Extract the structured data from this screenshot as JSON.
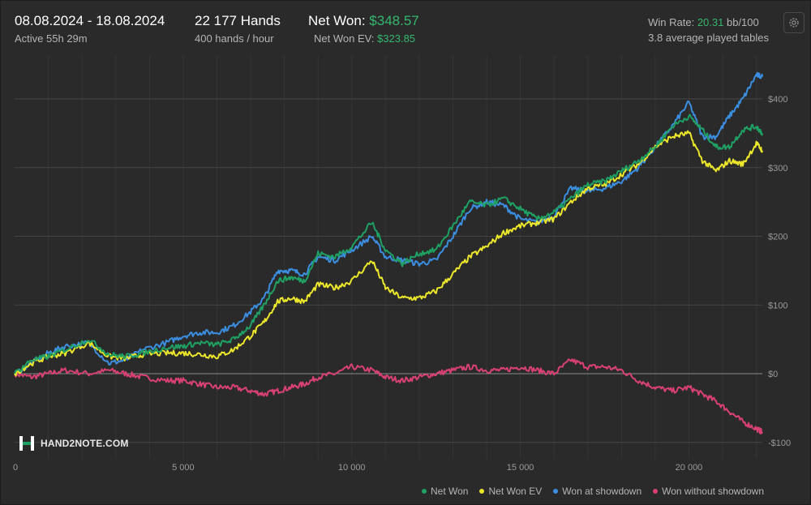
{
  "header": {
    "period": "08.08.2024 - 18.08.2024",
    "active": "Active 55h 29m",
    "hands": "22 177 Hands",
    "hands_rate": "400 hands / hour",
    "net_won_label": "Net Won:",
    "net_won_value": "$348.57",
    "net_won_ev_label": "Net Won  EV:",
    "net_won_ev_value": "$323.85",
    "win_rate_label": "Win Rate:",
    "win_rate_value": "20.31",
    "win_rate_unit": "bb/100",
    "tables": "3.8 average played tables"
  },
  "logo": {
    "text": "HAND2NOTE.COM"
  },
  "colors": {
    "net_won": "#1fa163",
    "net_won_ev": "#ece72a",
    "showdown": "#3b8ee0",
    "non_showdown": "#d94172",
    "accent_green": "#35b86e"
  },
  "chart_data": {
    "type": "line",
    "xlim": [
      0,
      22177
    ],
    "ylim": [
      -100,
      440
    ],
    "x_ticks": [
      0,
      5000,
      10000,
      15000,
      20000
    ],
    "x_tick_labels": [
      "0",
      "5 000",
      "10 000",
      "15 000",
      "20 000"
    ],
    "y_ticks": [
      -100,
      0,
      100,
      200,
      300,
      400
    ],
    "y_tick_labels": [
      "-$100",
      "$0",
      "$100",
      "$200",
      "$300",
      "$400"
    ],
    "grid": true,
    "legend_position": "bottom-right",
    "series": [
      {
        "name": "Net Won",
        "color": "#1fa163",
        "points": [
          [
            0,
            0
          ],
          [
            500,
            20
          ],
          [
            1000,
            25
          ],
          [
            1500,
            35
          ],
          [
            2200,
            50
          ],
          [
            2800,
            28
          ],
          [
            3300,
            25
          ],
          [
            3800,
            30
          ],
          [
            4500,
            38
          ],
          [
            5000,
            40
          ],
          [
            5500,
            45
          ],
          [
            6000,
            42
          ],
          [
            6500,
            50
          ],
          [
            7000,
            70
          ],
          [
            7400,
            100
          ],
          [
            7800,
            135
          ],
          [
            8200,
            140
          ],
          [
            8600,
            135
          ],
          [
            9000,
            175
          ],
          [
            9500,
            170
          ],
          [
            10000,
            185
          ],
          [
            10600,
            220
          ],
          [
            11000,
            180
          ],
          [
            11500,
            160
          ],
          [
            12000,
            175
          ],
          [
            12500,
            180
          ],
          [
            13000,
            215
          ],
          [
            13500,
            250
          ],
          [
            14000,
            245
          ],
          [
            14500,
            255
          ],
          [
            15000,
            240
          ],
          [
            15500,
            225
          ],
          [
            16000,
            235
          ],
          [
            16500,
            255
          ],
          [
            17000,
            275
          ],
          [
            17500,
            280
          ],
          [
            18000,
            295
          ],
          [
            18500,
            310
          ],
          [
            19000,
            330
          ],
          [
            19500,
            360
          ],
          [
            20000,
            375
          ],
          [
            20400,
            355
          ],
          [
            20800,
            330
          ],
          [
            21200,
            330
          ],
          [
            21600,
            355
          ],
          [
            22000,
            360
          ],
          [
            22177,
            350
          ]
        ]
      },
      {
        "name": "Net Won  EV",
        "color": "#ece72a",
        "points": [
          [
            0,
            0
          ],
          [
            500,
            15
          ],
          [
            1000,
            25
          ],
          [
            1500,
            30
          ],
          [
            2200,
            45
          ],
          [
            2800,
            25
          ],
          [
            3300,
            22
          ],
          [
            3800,
            28
          ],
          [
            4500,
            30
          ],
          [
            5000,
            30
          ],
          [
            5500,
            28
          ],
          [
            6000,
            25
          ],
          [
            6500,
            35
          ],
          [
            7000,
            55
          ],
          [
            7400,
            75
          ],
          [
            7800,
            105
          ],
          [
            8200,
            110
          ],
          [
            8600,
            105
          ],
          [
            9000,
            130
          ],
          [
            9500,
            125
          ],
          [
            10000,
            135
          ],
          [
            10600,
            165
          ],
          [
            11000,
            125
          ],
          [
            11500,
            110
          ],
          [
            12000,
            110
          ],
          [
            12500,
            120
          ],
          [
            13000,
            145
          ],
          [
            13500,
            170
          ],
          [
            14000,
            185
          ],
          [
            14500,
            205
          ],
          [
            15000,
            215
          ],
          [
            15500,
            220
          ],
          [
            16000,
            225
          ],
          [
            16500,
            250
          ],
          [
            17000,
            270
          ],
          [
            17500,
            275
          ],
          [
            18000,
            290
          ],
          [
            18500,
            305
          ],
          [
            19000,
            330
          ],
          [
            19500,
            345
          ],
          [
            20000,
            350
          ],
          [
            20400,
            310
          ],
          [
            20800,
            295
          ],
          [
            21200,
            310
          ],
          [
            21600,
            305
          ],
          [
            22000,
            335
          ],
          [
            22177,
            325
          ]
        ]
      },
      {
        "name": "Won at showdown",
        "color": "#3b8ee0",
        "points": [
          [
            0,
            0
          ],
          [
            500,
            15
          ],
          [
            1000,
            30
          ],
          [
            1500,
            40
          ],
          [
            2200,
            45
          ],
          [
            2800,
            15
          ],
          [
            3300,
            20
          ],
          [
            3800,
            35
          ],
          [
            4500,
            45
          ],
          [
            5000,
            55
          ],
          [
            5500,
            60
          ],
          [
            6000,
            60
          ],
          [
            6500,
            70
          ],
          [
            7000,
            90
          ],
          [
            7400,
            110
          ],
          [
            7800,
            150
          ],
          [
            8200,
            150
          ],
          [
            8600,
            145
          ],
          [
            9000,
            170
          ],
          [
            9500,
            165
          ],
          [
            10000,
            180
          ],
          [
            10600,
            200
          ],
          [
            11000,
            170
          ],
          [
            11500,
            165
          ],
          [
            12000,
            160
          ],
          [
            12500,
            165
          ],
          [
            13000,
            200
          ],
          [
            13500,
            240
          ],
          [
            14000,
            250
          ],
          [
            14500,
            245
          ],
          [
            15000,
            225
          ],
          [
            15500,
            220
          ],
          [
            16000,
            230
          ],
          [
            16500,
            270
          ],
          [
            17000,
            265
          ],
          [
            17500,
            270
          ],
          [
            18000,
            280
          ],
          [
            18500,
            300
          ],
          [
            19000,
            330
          ],
          [
            19500,
            360
          ],
          [
            20000,
            395
          ],
          [
            20400,
            345
          ],
          [
            20800,
            345
          ],
          [
            21200,
            375
          ],
          [
            21600,
            400
          ],
          [
            22000,
            435
          ],
          [
            22177,
            432
          ]
        ]
      },
      {
        "name": "Won without showdown",
        "color": "#d94172",
        "points": [
          [
            0,
            0
          ],
          [
            500,
            -5
          ],
          [
            1000,
            0
          ],
          [
            1500,
            5
          ],
          [
            2200,
            0
          ],
          [
            2800,
            5
          ],
          [
            3300,
            0
          ],
          [
            3800,
            -5
          ],
          [
            4500,
            -10
          ],
          [
            5000,
            -10
          ],
          [
            5500,
            -15
          ],
          [
            6000,
            -20
          ],
          [
            6500,
            -20
          ],
          [
            7000,
            -25
          ],
          [
            7400,
            -30
          ],
          [
            7800,
            -25
          ],
          [
            8200,
            -20
          ],
          [
            8600,
            -15
          ],
          [
            9000,
            -5
          ],
          [
            9500,
            0
          ],
          [
            10000,
            10
          ],
          [
            10600,
            5
          ],
          [
            11000,
            -5
          ],
          [
            11500,
            -10
          ],
          [
            12000,
            -5
          ],
          [
            12500,
            0
          ],
          [
            13000,
            5
          ],
          [
            13500,
            10
          ],
          [
            14000,
            5
          ],
          [
            14500,
            5
          ],
          [
            15000,
            10
          ],
          [
            15500,
            5
          ],
          [
            16000,
            0
          ],
          [
            16500,
            20
          ],
          [
            17000,
            10
          ],
          [
            17500,
            10
          ],
          [
            18000,
            5
          ],
          [
            18500,
            -10
          ],
          [
            19000,
            -20
          ],
          [
            19500,
            -25
          ],
          [
            20000,
            -20
          ],
          [
            20400,
            -30
          ],
          [
            20800,
            -40
          ],
          [
            21200,
            -55
          ],
          [
            21600,
            -70
          ],
          [
            22000,
            -80
          ],
          [
            22177,
            -85
          ]
        ]
      }
    ]
  }
}
